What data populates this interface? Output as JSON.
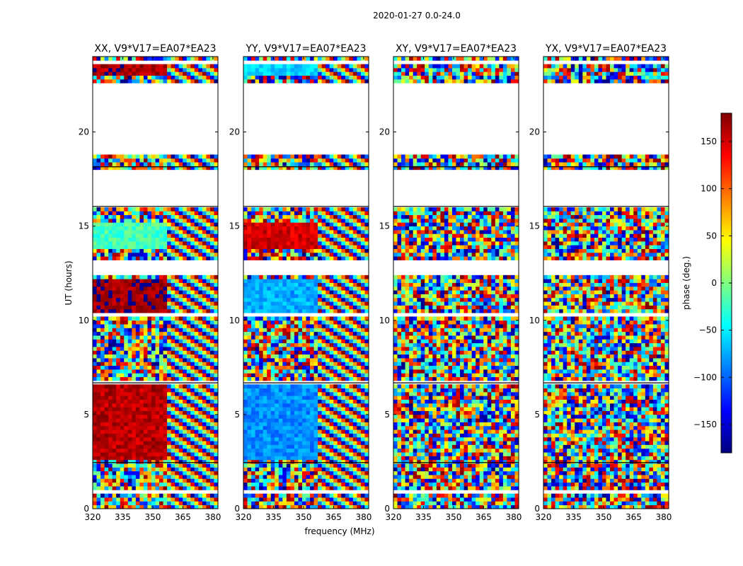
{
  "figure": {
    "suptitle": "2020-01-27 0.0-24.0",
    "xlabel": "frequency (MHz)",
    "ylabel": "UT (hours)"
  },
  "colorbar": {
    "label": "phase (deg.)",
    "range": [
      -180,
      180
    ],
    "ticks": [
      150,
      100,
      50,
      0,
      -50,
      -100,
      -150
    ],
    "tick_labels": [
      "150",
      "100",
      "50",
      "0",
      "−50",
      "−100",
      "−150"
    ],
    "colormap": "jet",
    "colors": [
      "#00007f",
      "#0000ff",
      "#007fff",
      "#00ffff",
      "#7fff7f",
      "#ffff00",
      "#ff7f00",
      "#ff0000",
      "#7f0000"
    ]
  },
  "chart_data": [
    {
      "type": "heatmap",
      "title": "XX, V9*V17=EA07*EA23",
      "x_ticks": [
        320,
        335,
        350,
        365,
        380
      ],
      "y_ticks": [
        0,
        5,
        10,
        15,
        20
      ],
      "xlim": [
        320,
        382.5
      ],
      "ylim": [
        0,
        24
      ],
      "z_range": [
        -180,
        180
      ],
      "blocks": [
        {
          "t": [
            2.6,
            6.6
          ],
          "f": [
            320,
            358
          ],
          "phase": 160
        },
        {
          "t": [
            10.3,
            12.3
          ],
          "f": [
            320,
            358
          ],
          "phase": 170
        },
        {
          "t": [
            13.8,
            15.2
          ],
          "f": [
            320,
            358
          ],
          "phase": -20
        },
        {
          "t": [
            23.1,
            23.6
          ],
          "f": [
            320,
            358
          ],
          "phase": 165
        }
      ]
    },
    {
      "type": "heatmap",
      "title": "YY, V9*V17=EA07*EA23",
      "x_ticks": [
        320,
        335,
        350,
        365,
        380
      ],
      "y_ticks": [
        0,
        5,
        10,
        15,
        20
      ],
      "xlim": [
        320,
        382.5
      ],
      "ylim": [
        0,
        24
      ],
      "z_range": [
        -180,
        180
      ],
      "blocks": [
        {
          "t": [
            2.6,
            6.6
          ],
          "f": [
            320,
            358
          ],
          "phase": -85
        },
        {
          "t": [
            10.3,
            12.3
          ],
          "f": [
            320,
            358
          ],
          "phase": -75
        },
        {
          "t": [
            13.8,
            15.2
          ],
          "f": [
            320,
            358
          ],
          "phase": 150
        },
        {
          "t": [
            23.1,
            23.6
          ],
          "f": [
            320,
            358
          ],
          "phase": -60
        }
      ]
    },
    {
      "type": "heatmap",
      "title": "XY, V9*V17=EA07*EA23",
      "x_ticks": [
        320,
        335,
        350,
        365,
        380
      ],
      "y_ticks": [
        0,
        5,
        10,
        15,
        20
      ],
      "xlim": [
        320,
        382.5
      ],
      "ylim": [
        0,
        24
      ],
      "z_range": [
        -180,
        180
      ],
      "blocks": []
    },
    {
      "type": "heatmap",
      "title": "YX, V9*V17=EA07*EA23",
      "x_ticks": [
        320,
        335,
        350,
        365,
        380
      ],
      "y_ticks": [
        0,
        5,
        10,
        15,
        20
      ],
      "xlim": [
        320,
        382.5
      ],
      "ylim": [
        0,
        24
      ],
      "z_range": [
        -180,
        180
      ],
      "blocks": []
    }
  ]
}
